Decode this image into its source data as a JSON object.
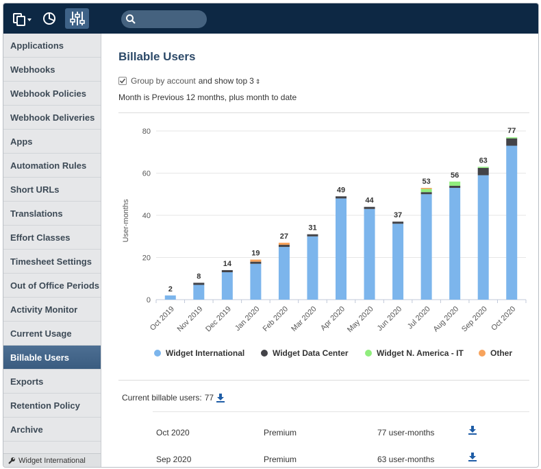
{
  "sidebar": {
    "items": [
      {
        "label": "Applications"
      },
      {
        "label": "Webhooks"
      },
      {
        "label": "Webhook Policies"
      },
      {
        "label": "Webhook Deliveries"
      },
      {
        "label": "Apps"
      },
      {
        "label": "Automation Rules"
      },
      {
        "label": "Short URLs"
      },
      {
        "label": "Translations"
      },
      {
        "label": "Effort Classes"
      },
      {
        "label": "Timesheet Settings"
      },
      {
        "label": "Out of Office Periods"
      },
      {
        "label": "Activity Monitor"
      },
      {
        "label": "Current Usage"
      },
      {
        "label": "Billable Users",
        "active": true
      },
      {
        "label": "Exports"
      },
      {
        "label": "Retention Policy"
      },
      {
        "label": "Archive"
      }
    ],
    "footer": "Widget International"
  },
  "search": {
    "placeholder": ""
  },
  "main": {
    "title": "Billable Users",
    "group_label": "Group by account",
    "group_connector": "and show top",
    "group_top_value": "3",
    "period_text": "Month is Previous 12 months, plus month to date",
    "current_label": "Current billable users:",
    "current_value": "77"
  },
  "chart_data": {
    "type": "bar",
    "stacked": true,
    "ylabel": "User-months",
    "ylim": [
      0,
      80
    ],
    "yticks": [
      0,
      20,
      40,
      60,
      80
    ],
    "grid": true,
    "legend_position": "bottom",
    "categories": [
      "Oct 2019",
      "Nov 2019",
      "Dec 2019",
      "Jan 2020",
      "Feb 2020",
      "Mar 2020",
      "Apr 2020",
      "May 2020",
      "Jun 2020",
      "Jul 2020",
      "Aug 2020",
      "Sep 2020",
      "Oct 2020"
    ],
    "totals": [
      2,
      8,
      14,
      19,
      27,
      31,
      49,
      44,
      37,
      53,
      56,
      63,
      77
    ],
    "series": [
      {
        "name": "Widget International",
        "color": "#7cb5ec",
        "values": [
          2,
          7,
          13,
          17,
          25,
          30,
          48,
          43,
          36,
          50,
          53,
          59,
          73
        ]
      },
      {
        "name": "Widget Data Center",
        "color": "#434348",
        "values": [
          0,
          1,
          1,
          1,
          1,
          1,
          1,
          1,
          1,
          1,
          1,
          3.5,
          3.5
        ]
      },
      {
        "name": "Widget N. America - IT",
        "color": "#90ed7d",
        "values": [
          0,
          0,
          0,
          0,
          0,
          0,
          0,
          0,
          0,
          1.5,
          2,
          0.5,
          0.5
        ]
      },
      {
        "name": "Other",
        "color": "#f7a35c",
        "values": [
          0,
          0,
          0,
          1,
          1,
          0,
          0,
          0,
          0,
          0.5,
          0,
          0,
          0
        ]
      }
    ]
  },
  "usage_rows": [
    {
      "month": "Oct 2020",
      "plan": "Premium",
      "amount": "77 user-months"
    },
    {
      "month": "Sep 2020",
      "plan": "Premium",
      "amount": "63 user-months"
    }
  ]
}
